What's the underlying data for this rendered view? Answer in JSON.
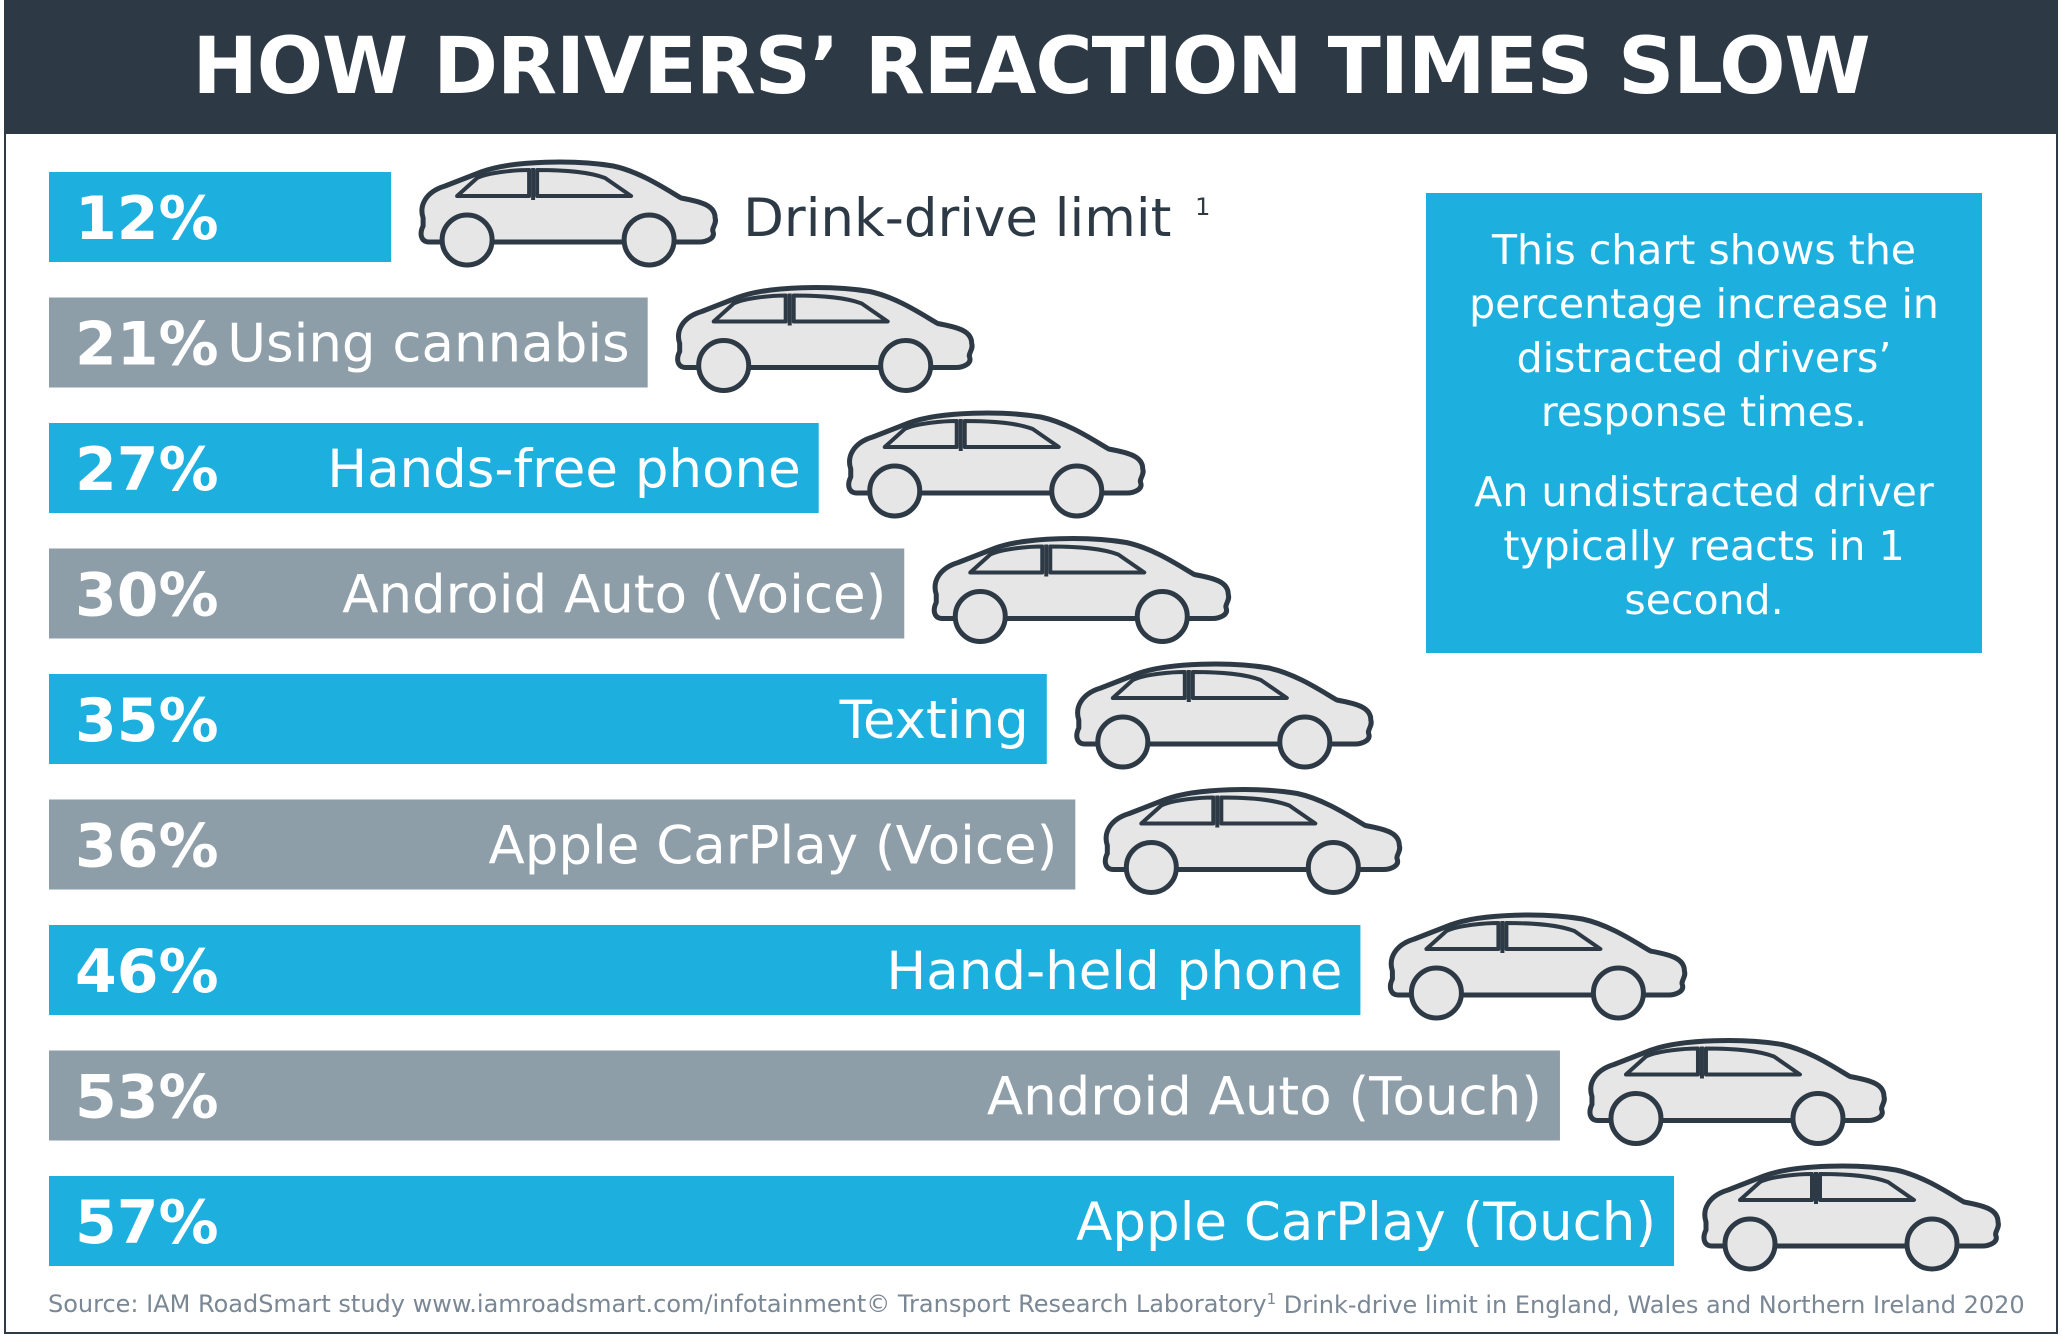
{
  "title": "HOW DRIVERS’ REACTION TIMES SLOW",
  "colors": {
    "header": "#2d3a45",
    "bar_blue": "#1db0df",
    "bar_gray": "#8e9ea9",
    "car_fill": "#e6e6e6",
    "car_stroke": "#2d3a45"
  },
  "icons": {
    "car": "car-icon"
  },
  "info_box": {
    "paragraph1": "This chart shows the percentage increase in distracted drivers’ response times.",
    "paragraph2": "An undistracted driver typically reacts in 1 second."
  },
  "footer": {
    "source": "Source: IAM RoadSmart study www.iamroadsmart.com/infotainment",
    "copyright": "© Transport Research Laboratory",
    "footnote_mark": "1",
    "footnote": "Drink-drive limit in England, Wales and Northern Ireland 2020"
  },
  "chart_data": {
    "type": "bar",
    "orientation": "horizontal",
    "title": "HOW DRIVERS’ REACTION TIMES SLOW",
    "xlabel": "",
    "ylabel": "",
    "unit": "%",
    "xlim": [
      0,
      57
    ],
    "grid": false,
    "categories": [
      "Drink-drive limit",
      "Using cannabis",
      "Hands-free phone",
      "Android Auto (Voice)",
      "Texting",
      "Apple CarPlay (Voice)",
      "Hand-held phone",
      "Android Auto (Touch)",
      "Apple CarPlay (Touch)"
    ],
    "values": [
      12,
      21,
      27,
      30,
      35,
      36,
      46,
      53,
      57
    ],
    "value_labels": [
      "12%",
      "21%",
      "27%",
      "30%",
      "35%",
      "36%",
      "46%",
      "53%",
      "57%"
    ],
    "bar_colors": [
      "#1db0df",
      "#8e9ea9",
      "#1db0df",
      "#8e9ea9",
      "#1db0df",
      "#8e9ea9",
      "#1db0df",
      "#8e9ea9",
      "#1db0df"
    ],
    "footnote_marks": [
      "1",
      "",
      "",
      "",
      "",
      "",
      "",
      "",
      ""
    ]
  }
}
